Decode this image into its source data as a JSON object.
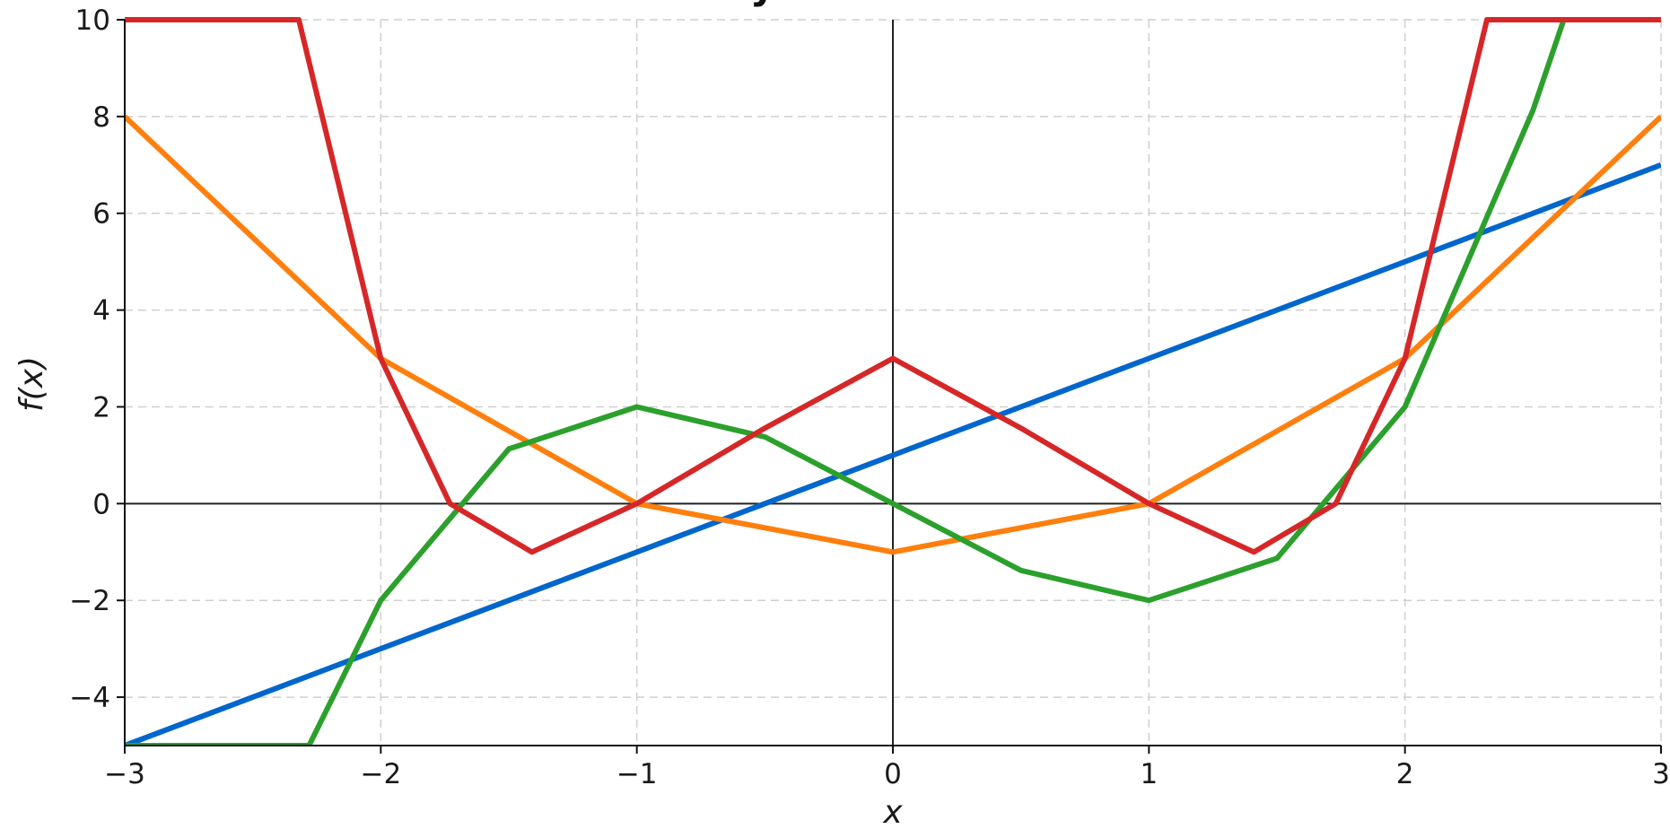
{
  "chart_data": {
    "type": "line",
    "title": "Polynomfunktionen",
    "xlabel": "x",
    "ylabel": "f(x)",
    "xlim": [
      -3,
      3
    ],
    "ylim": [
      -5,
      10
    ],
    "grid": true,
    "x_ticks": [
      -3,
      -2,
      -1,
      0,
      1,
      2,
      3
    ],
    "y_ticks": [
      -4,
      -2,
      0,
      2,
      4,
      6,
      8,
      10
    ],
    "x_tick_labels": [
      "−3",
      "−2",
      "−1",
      "0",
      "1",
      "2",
      "3"
    ],
    "y_tick_labels": [
      "−4",
      "−2",
      "0",
      "2",
      "4",
      "6",
      "8",
      "10"
    ],
    "series": [
      {
        "color": "#0066cc",
        "x": [
          -3,
          -2,
          -1,
          0,
          1,
          2,
          3
        ],
        "y": [
          -5,
          -3,
          -1,
          1,
          3,
          5,
          7
        ]
      },
      {
        "color": "#ff7f0e",
        "x": [
          -3,
          -2,
          -1,
          0,
          1,
          2,
          3
        ],
        "y": [
          8,
          3,
          0,
          -1,
          0,
          3,
          8
        ]
      },
      {
        "color": "#2ca02c",
        "x": [
          -3,
          -2.28,
          -2,
          -1.5,
          -1,
          -0.5,
          0,
          0.5,
          1,
          1.5,
          2,
          2.5,
          2.62,
          3
        ],
        "y": [
          -5,
          -5,
          -2,
          1.13,
          2,
          1.38,
          0,
          -1.38,
          -2,
          -1.13,
          2,
          8.13,
          10,
          10
        ]
      },
      {
        "color": "#d62728",
        "x": [
          -3,
          -2.32,
          -2,
          -1.73,
          -1.41,
          -1,
          -0.5,
          0,
          0.5,
          1,
          1.41,
          1.73,
          2,
          2.32,
          3
        ],
        "y": [
          10,
          10,
          3,
          0,
          -1,
          0,
          1.56,
          3,
          1.56,
          0,
          -1,
          0,
          3,
          10,
          10
        ]
      }
    ]
  }
}
